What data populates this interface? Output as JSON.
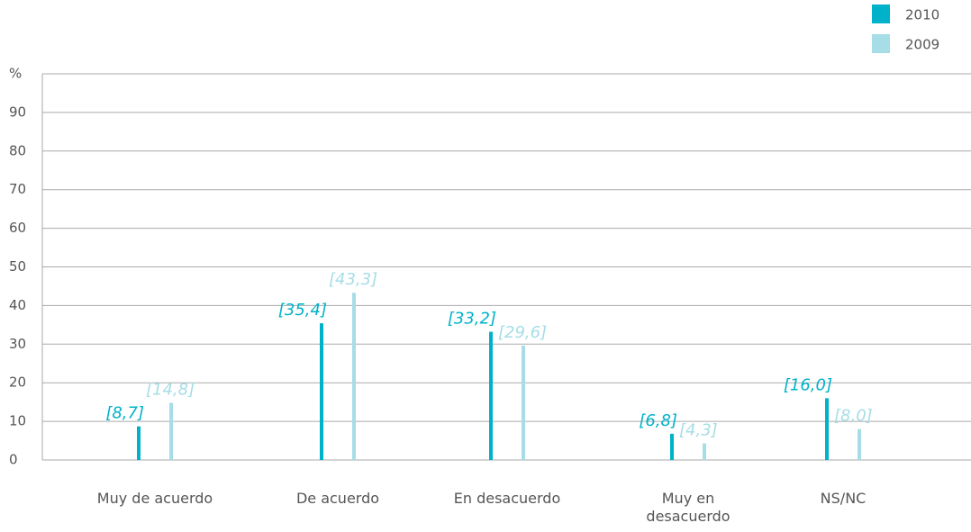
{
  "chart_data": {
    "type": "bar",
    "categories": [
      "Muy de acuerdo",
      "De acuerdo",
      "En desacuerdo",
      "Muy en desacuerdo",
      "NS/NC"
    ],
    "series": [
      {
        "name": "2010",
        "color": "#00b2c9",
        "values": [
          8.7,
          35.4,
          33.2,
          6.8,
          16.0
        ],
        "value_labels": [
          "[8,7]",
          "[35,4]",
          "[33,2]",
          "[6,8]",
          "[16,0]"
        ]
      },
      {
        "name": "2009",
        "color": "#a6dde6",
        "values": [
          14.8,
          43.3,
          29.6,
          4.3,
          8.0
        ],
        "value_labels": [
          "[14,8]",
          "[43,3]",
          "[29,6]",
          "[4,3]",
          "[8,0]"
        ]
      }
    ],
    "ylim": [
      0,
      100
    ],
    "yticks": [
      0,
      10,
      20,
      30,
      40,
      50,
      60,
      70,
      80,
      90,
      {
        "value": 100,
        "label": "%"
      }
    ],
    "grid": true,
    "legend": "top-right"
  }
}
